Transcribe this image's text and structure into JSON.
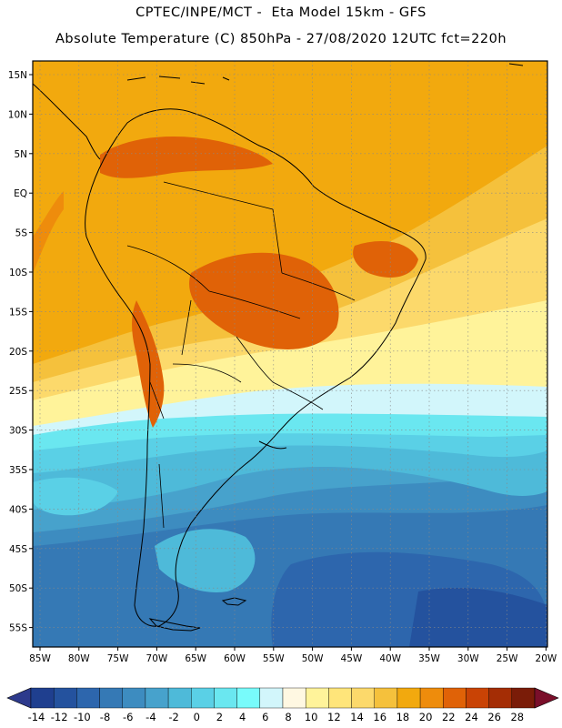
{
  "title_line1": "CPTEC/INPE/MCT -  Eta Model 15km - GFS",
  "title_line2": "Absolute Temperature (C) 850hPa - 27/08/2020 12UTC fct=220h",
  "lat_labels": [
    "15N",
    "10N",
    "5N",
    "EQ",
    "5S",
    "10S",
    "15S",
    "20S",
    "25S",
    "30S",
    "35S",
    "40S",
    "45S",
    "50S",
    "55S"
  ],
  "lon_labels": [
    "85W",
    "80W",
    "75W",
    "70W",
    "65W",
    "60W",
    "55W",
    "50W",
    "45W",
    "40W",
    "35W",
    "30W",
    "25W",
    "20W"
  ],
  "colorbar": {
    "labels": [
      "-14",
      "-12",
      "-10",
      "-8",
      "-6",
      "-4",
      "-2",
      "0",
      "2",
      "4",
      "6",
      "8",
      "10",
      "12",
      "14",
      "16",
      "18",
      "20",
      "22",
      "24",
      "26",
      "28"
    ],
    "colors": [
      "#1f3f8f",
      "#24529e",
      "#2d66ad",
      "#3579b5",
      "#3d8cc0",
      "#47a2cc",
      "#4ebad9",
      "#5ad0e6",
      "#6ae7f0",
      "#78fbfb",
      "#d2f6fb",
      "#fff8e2",
      "#fff39a",
      "#ffe57a",
      "#fcd96b",
      "#f5c13c",
      "#f2a90e",
      "#ee8c0c",
      "#e06207",
      "#c94305",
      "#a42d05",
      "#7a1c08"
    ],
    "under_color": "#2d3a8c",
    "over_color": "#7a0f2a"
  }
}
